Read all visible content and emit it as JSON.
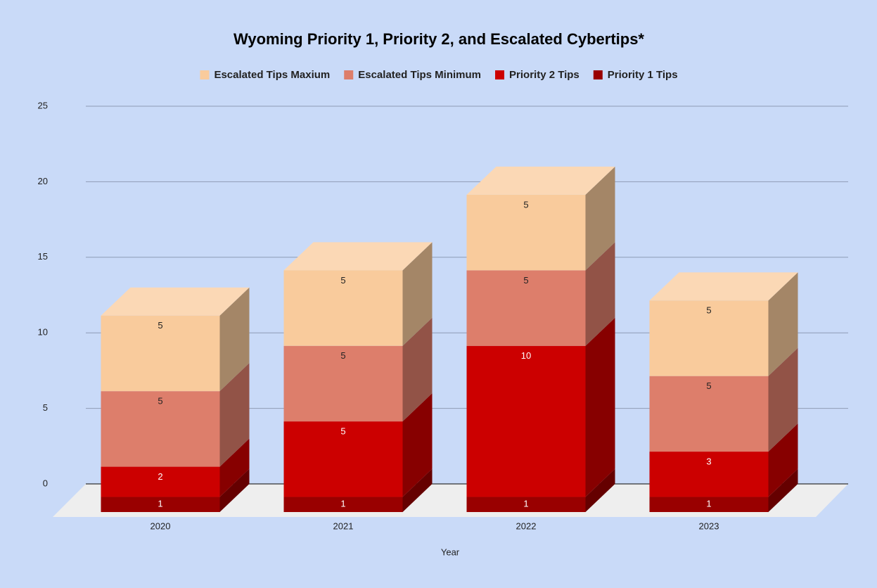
{
  "chart_data": {
    "type": "bar3d_stacked",
    "title": "Wyoming Priority 1, Priority 2, and Escalated Cybertips*",
    "x_label": "Year",
    "categories": [
      "2020",
      "2021",
      "2022",
      "2023"
    ],
    "series": [
      {
        "name": "Escalated Tips Maxium",
        "color": "#f9cb9c",
        "label_color": "#222222",
        "values": [
          5,
          5,
          5,
          5
        ]
      },
      {
        "name": "Escalated Tips Minimum",
        "color": "#dd7e6b",
        "label_color": "#222222",
        "values": [
          5,
          5,
          5,
          5
        ]
      },
      {
        "name": "Priority 2 Tips",
        "color": "#cc0000",
        "label_color": "#ffffff",
        "values": [
          2,
          5,
          10,
          3
        ]
      },
      {
        "name": "Priority 1 Tips",
        "color": "#990000",
        "label_color": "#ffffff",
        "values": [
          1,
          1,
          1,
          1
        ]
      }
    ],
    "stacked": true,
    "ylim": [
      0,
      25
    ],
    "yticks": [
      0,
      5,
      10,
      15,
      20,
      25
    ],
    "grid": true,
    "legend": "top"
  }
}
